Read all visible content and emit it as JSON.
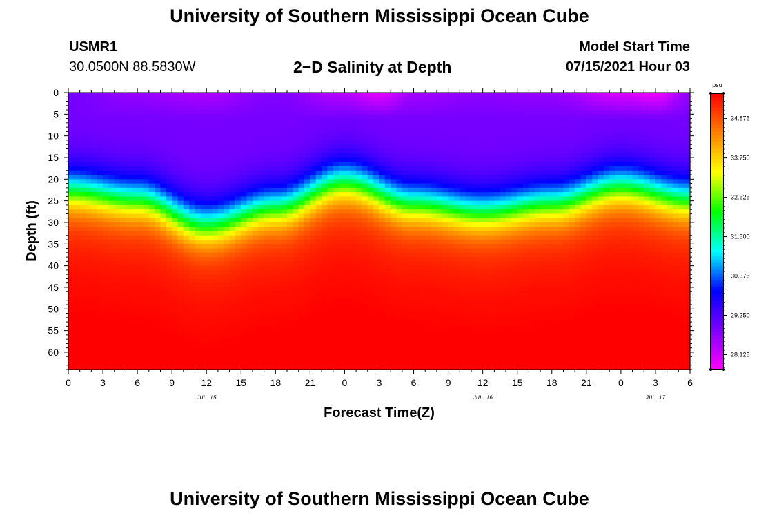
{
  "header": {
    "title": "University of Southern Mississippi Ocean Cube",
    "station": "USMR1",
    "coords": "30.0500N  88.5830W",
    "subtitle": "2−D Salinity at Depth",
    "model_start_label": "Model Start Time",
    "model_start_value": "07/15/2021 Hour 03"
  },
  "footer": {
    "title": "University of Southern Mississippi Ocean Cube"
  },
  "colors": {
    "frame": "#000000",
    "background": "#ffffff",
    "palette": [
      "#ff00ff",
      "#7f00ff",
      "#0000ff",
      "#00ffff",
      "#00ff00",
      "#ffff00",
      "#ff8000",
      "#ff0000"
    ]
  },
  "chart_data": {
    "type": "heatmap",
    "title": "2−D Salinity at Depth",
    "xlabel": "Forecast Time(Z)",
    "ylabel": "Depth (ft)",
    "xlim": [
      0,
      54
    ],
    "ylim": [
      0,
      64
    ],
    "y_inverted": true,
    "x_tick_values": [
      0,
      3,
      6,
      9,
      12,
      15,
      18,
      21,
      24,
      27,
      30,
      33,
      36,
      39,
      42,
      45,
      48,
      51,
      54
    ],
    "x_tick_labels": [
      "0",
      "3",
      "6",
      "9",
      "12",
      "15",
      "18",
      "21",
      "0",
      "3",
      "6",
      "9",
      "12",
      "15",
      "18",
      "21",
      "0",
      "3",
      "6"
    ],
    "date_labels": [
      {
        "text": "JUL 15",
        "x": 12
      },
      {
        "text": "JUL 16",
        "x": 36
      },
      {
        "text": "JUL 17",
        "x": 51
      }
    ],
    "y_tick_values": [
      0,
      5,
      10,
      15,
      20,
      25,
      30,
      35,
      40,
      45,
      50,
      55,
      60
    ],
    "y_tick_labels": [
      "0",
      "5",
      "10",
      "15",
      "20",
      "25",
      "30",
      "35",
      "40",
      "45",
      "50",
      "55",
      "60"
    ],
    "colorbar": {
      "unit": "psu",
      "min": 27.7,
      "max": 35.6,
      "ticks": [
        28.125,
        29.25,
        30.375,
        31.5,
        32.625,
        33.75,
        34.875
      ],
      "tick_labels": [
        "28.125",
        "29.250",
        "30.375",
        "31.500",
        "32.625",
        "33.750",
        "34.875"
      ]
    },
    "halocline_depth_ft": {
      "time": [
        0,
        6,
        12,
        18,
        24,
        30,
        36,
        42,
        48,
        54
      ],
      "depth": [
        23,
        25,
        31,
        27,
        21,
        26,
        28,
        26,
        22,
        25
      ]
    },
    "surface_salinity_psu": {
      "time": [
        0,
        6,
        12,
        18,
        24,
        27,
        30,
        36,
        42,
        48,
        51,
        54
      ],
      "value": [
        28.9,
        28.6,
        28.4,
        28.8,
        28.3,
        27.9,
        28.5,
        28.7,
        28.6,
        28.0,
        27.8,
        28.6
      ]
    },
    "mixed_layer_salinity_psu": 28.9,
    "deep_salinity_psu": 35.4
  }
}
